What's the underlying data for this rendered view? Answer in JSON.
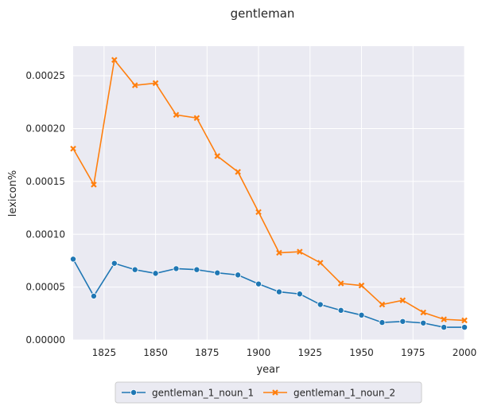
{
  "chart_data": {
    "type": "line",
    "title": "gentleman",
    "xlabel": "year",
    "ylabel": "lexicon%",
    "xlim": [
      1810,
      2000
    ],
    "ylim": [
      0,
      0.000278
    ],
    "grid": true,
    "legend_position": "bottom-center",
    "x_ticks": [
      {
        "value": 1825,
        "label": "1825"
      },
      {
        "value": 1850,
        "label": "1850"
      },
      {
        "value": 1875,
        "label": "1875"
      },
      {
        "value": 1900,
        "label": "1900"
      },
      {
        "value": 1925,
        "label": "1925"
      },
      {
        "value": 1950,
        "label": "1950"
      },
      {
        "value": 1975,
        "label": "1975"
      },
      {
        "value": 2000,
        "label": "2000"
      }
    ],
    "y_ticks": [
      {
        "value": 0,
        "label": "0.00000"
      },
      {
        "value": 5e-05,
        "label": "0.00005"
      },
      {
        "value": 0.0001,
        "label": "0.00010"
      },
      {
        "value": 0.00015,
        "label": "0.00015"
      },
      {
        "value": 0.0002,
        "label": "0.00020"
      },
      {
        "value": 0.00025,
        "label": "0.00025"
      }
    ],
    "x": [
      1810,
      1820,
      1830,
      1840,
      1850,
      1860,
      1870,
      1880,
      1890,
      1900,
      1910,
      1920,
      1930,
      1940,
      1950,
      1960,
      1970,
      1980,
      1990,
      2000
    ],
    "series": [
      {
        "name": "gentleman_1_noun_1",
        "color": "#1f77b4",
        "marker": "circle",
        "values": [
          7.65e-05,
          4.15e-05,
          7.25e-05,
          6.65e-05,
          6.3e-05,
          6.75e-05,
          6.65e-05,
          6.35e-05,
          6.15e-05,
          5.3e-05,
          4.55e-05,
          4.35e-05,
          3.35e-05,
          2.8e-05,
          2.35e-05,
          1.65e-05,
          1.75e-05,
          1.6e-05,
          1.2e-05,
          1.2e-05
        ]
      },
      {
        "name": "gentleman_1_noun_2",
        "color": "#ff7f0e",
        "marker": "x",
        "values": [
          0.000181,
          0.000147,
          0.000265,
          0.000241,
          0.000243,
          0.000213,
          0.00021,
          0.000174,
          0.000159,
          0.000121,
          8.25e-05,
          8.35e-05,
          7.3e-05,
          5.35e-05,
          5.15e-05,
          3.35e-05,
          3.75e-05,
          2.6e-05,
          1.95e-05,
          1.85e-05
        ]
      }
    ]
  }
}
